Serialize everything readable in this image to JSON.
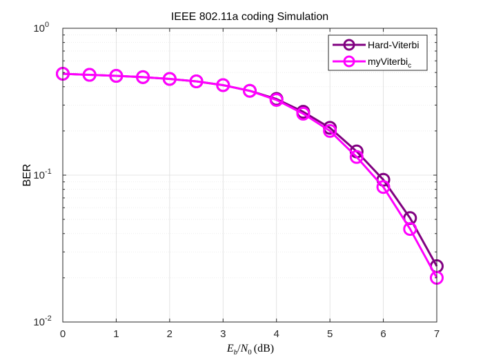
{
  "chart_data": {
    "type": "line",
    "title": "IEEE 802.11a coding Simulation",
    "xlabel": {
      "E": "E",
      "b": "b",
      "slash": "/",
      "N": "N",
      "zero": "0",
      "unit": "(dB)"
    },
    "ylabel": "BER",
    "xlim": [
      0,
      7
    ],
    "ylim": [
      0.01,
      1
    ],
    "yscale": "log",
    "grid": true,
    "minor_grid": true,
    "legend_position": "top-right",
    "x_ticks": [
      "0",
      "1",
      "2",
      "3",
      "4",
      "5",
      "6",
      "7"
    ],
    "y_ticks": [
      {
        "base": "10",
        "exp": "-2"
      },
      {
        "base": "10",
        "exp": "-1"
      },
      {
        "base": "10",
        "exp": "0"
      }
    ],
    "x": [
      0,
      0.5,
      1,
      1.5,
      2,
      2.5,
      3,
      3.5,
      4,
      4.5,
      5,
      5.5,
      6,
      6.5,
      7
    ],
    "series": [
      {
        "name": "Hard-Viterbi",
        "color": "#800080",
        "marker": "circle",
        "values": [
          0.49,
          0.482,
          0.474,
          0.465,
          0.452,
          0.435,
          0.41,
          0.375,
          0.33,
          0.27,
          0.21,
          0.145,
          0.093,
          0.051,
          0.024
        ]
      },
      {
        "name": "myViterbi",
        "name_subscript": "c",
        "color": "#ff00ff",
        "marker": "circle",
        "values": [
          0.49,
          0.482,
          0.474,
          0.465,
          0.452,
          0.435,
          0.41,
          0.375,
          0.325,
          0.262,
          0.2,
          0.133,
          0.083,
          0.043,
          0.02
        ]
      }
    ]
  }
}
